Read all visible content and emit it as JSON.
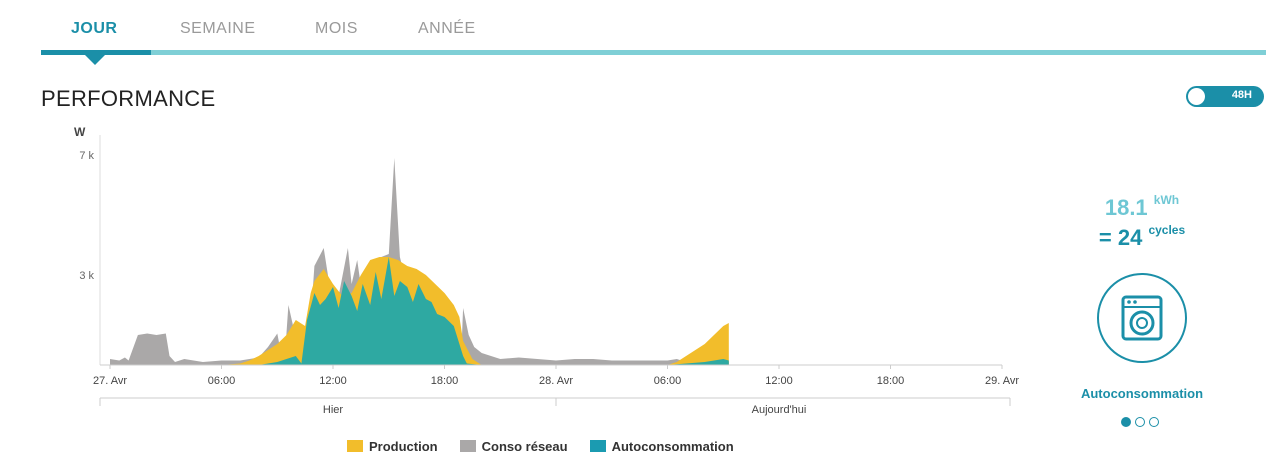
{
  "tabs": [
    {
      "label": "JOUR",
      "active": true
    },
    {
      "label": "SEMAINE",
      "active": false
    },
    {
      "label": "MOIS",
      "active": false
    },
    {
      "label": "ANNÉE",
      "active": false
    }
  ],
  "page_title": "PERFORMANCE",
  "toggle": {
    "label": "48H",
    "state": "on"
  },
  "side_panel": {
    "energy_value": "18.1",
    "energy_unit": "kWh",
    "equals": "=",
    "cycles_value": "24",
    "cycles_unit": "cycles",
    "icon": "washing-machine-icon",
    "label": "Autoconsommation",
    "pagination": {
      "count": 3,
      "active_index": 0
    }
  },
  "colors": {
    "accent": "#1b8fa8",
    "tab_underline": "#7fcfd6",
    "production": "#f2bd2b",
    "conso": "#aaa8a8",
    "autoconsommation": "#2ea9a2"
  },
  "chart_data": {
    "type": "area",
    "ylabel": "W",
    "ylim": [
      0,
      7500
    ],
    "y_ticks": [
      {
        "value": 7000,
        "label": "7 k"
      },
      {
        "value": 3000,
        "label": "3 k"
      }
    ],
    "xlim": [
      0,
      48
    ],
    "x_ticks": [
      {
        "value": 0,
        "label": "27. Avr"
      },
      {
        "value": 6,
        "label": "06:00"
      },
      {
        "value": 12,
        "label": "12:00"
      },
      {
        "value": 18,
        "label": "18:00"
      },
      {
        "value": 24,
        "label": "28. Avr"
      },
      {
        "value": 30,
        "label": "06:00"
      },
      {
        "value": 36,
        "label": "12:00"
      },
      {
        "value": 42,
        "label": "18:00"
      },
      {
        "value": 48,
        "label": "29. Avr"
      }
    ],
    "day_groups": [
      {
        "label": "Hier",
        "from": 0,
        "to": 24
      },
      {
        "label": "Aujourd'hui",
        "from": 24,
        "to": 48
      }
    ],
    "legend": [
      "Production",
      "Conso réseau",
      "Autoconsommation"
    ],
    "series": [
      {
        "name": "Conso réseau",
        "x": [
          0,
          0.5,
          0.8,
          1,
          1.5,
          2,
          2.5,
          3,
          3.2,
          3.5,
          4,
          5,
          6,
          7,
          8,
          8.5,
          9,
          9.2,
          9.4,
          9.6,
          10,
          10.5,
          10.7,
          11,
          11.5,
          11.8,
          12,
          12.3,
          12.8,
          13,
          13.3,
          13.6,
          14,
          14.2,
          14.6,
          15,
          15.3,
          15.6,
          15.8,
          16,
          16.2,
          16.5,
          17,
          17.5,
          18,
          18.5,
          18.9,
          19,
          19.3,
          19.6,
          20,
          20.5,
          21,
          22,
          23,
          24,
          25,
          26,
          27,
          28,
          29,
          30,
          30.5,
          31,
          31.5,
          32,
          32.5,
          33,
          33.3
        ],
        "y": [
          200,
          150,
          250,
          150,
          1000,
          1050,
          1000,
          1050,
          300,
          100,
          200,
          100,
          150,
          150,
          250,
          600,
          1050,
          400,
          200,
          2000,
          900,
          1100,
          600,
          3300,
          3900,
          2700,
          1400,
          2300,
          3900,
          2700,
          3500,
          2200,
          3400,
          3500,
          3600,
          3700,
          6900,
          3600,
          3100,
          2900,
          2400,
          1800,
          1500,
          1400,
          1200,
          400,
          300,
          1900,
          1000,
          600,
          400,
          300,
          200,
          250,
          200,
          150,
          200,
          200,
          150,
          150,
          150,
          150,
          200,
          100,
          200,
          100,
          250,
          150,
          100
        ]
      },
      {
        "name": "Production",
        "x": [
          0,
          5,
          6,
          7,
          7.5,
          8,
          8.5,
          9,
          9.5,
          10,
          10.5,
          10.8,
          11,
          11.5,
          12,
          12.5,
          13,
          13.5,
          14,
          14.5,
          15,
          15.5,
          16,
          16.5,
          17,
          17.5,
          18,
          18.5,
          18.8,
          19,
          19.5,
          20,
          24,
          28,
          30,
          30.5,
          31,
          31.5,
          32,
          32.5,
          33,
          33.3
        ],
        "y": [
          0,
          0,
          0,
          50,
          150,
          300,
          500,
          700,
          1000,
          1500,
          1300,
          2400,
          2800,
          3200,
          2700,
          2300,
          2400,
          3000,
          3500,
          3600,
          3600,
          3500,
          3300,
          3200,
          3000,
          2700,
          2400,
          2000,
          1600,
          800,
          200,
          0,
          0,
          0,
          0,
          100,
          300,
          500,
          700,
          1000,
          1300,
          1400
        ]
      },
      {
        "name": "Autoconsommation",
        "x": [
          0,
          8,
          8.5,
          9,
          9.5,
          10,
          10.3,
          10.6,
          11,
          11.3,
          11.6,
          12,
          12.3,
          12.6,
          13,
          13.3,
          13.6,
          14,
          14.3,
          14.6,
          15,
          15.3,
          15.6,
          16,
          16.3,
          16.6,
          17,
          17.3,
          17.6,
          18,
          18.5,
          18.8,
          19,
          19.2,
          20,
          24,
          30,
          31,
          32,
          33,
          33.3
        ],
        "y": [
          0,
          0,
          50,
          100,
          200,
          300,
          50,
          1500,
          2400,
          2000,
          2200,
          2600,
          1900,
          2800,
          2300,
          1800,
          2700,
          2000,
          3100,
          2200,
          3600,
          2300,
          2800,
          2600,
          2100,
          2700,
          2200,
          2100,
          1700,
          1600,
          1300,
          700,
          300,
          50,
          0,
          0,
          0,
          50,
          100,
          200,
          150
        ]
      }
    ]
  }
}
